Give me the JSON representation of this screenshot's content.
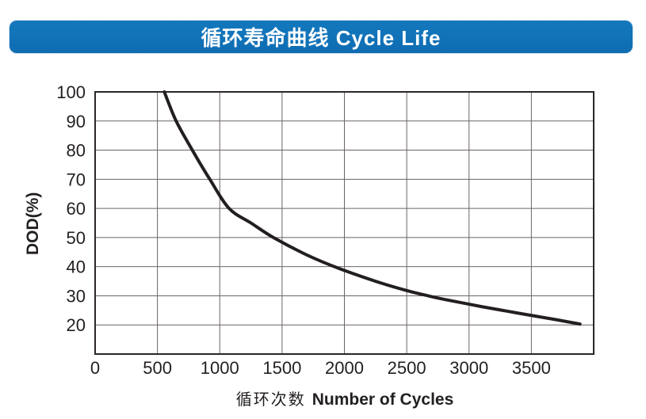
{
  "header": {
    "title": "循环寿命曲线 Cycle Life",
    "background_color": "#1172b8",
    "text_color": "#ffffff"
  },
  "chart_data": {
    "type": "line",
    "title": "循环寿命曲线 Cycle Life",
    "xlabel": "循环次数 Number of Cycles",
    "xlabel_zh": "循环次数",
    "xlabel_en": "Number of Cycles",
    "ylabel": "DOD(%)",
    "xlim": [
      0,
      4000
    ],
    "ylim": [
      10,
      100
    ],
    "x_ticks": [
      0,
      500,
      1000,
      1500,
      2000,
      2500,
      3000,
      3500
    ],
    "y_ticks": [
      20,
      30,
      40,
      50,
      60,
      70,
      80,
      90,
      100
    ],
    "x_grid_step": 500,
    "y_grid_step": 10,
    "grid": "on",
    "legend": "none",
    "colors": {
      "curve": "#231f20",
      "gridline": "#6b6466",
      "plot_border": "#2b2726",
      "text": "#231f20"
    },
    "series": [
      {
        "name": "Cycle Life",
        "color": "#231f20",
        "points": [
          [
            555,
            100
          ],
          [
            650,
            90
          ],
          [
            780,
            80
          ],
          [
            920,
            70
          ],
          [
            1075,
            60
          ],
          [
            1250,
            55
          ],
          [
            1430,
            50
          ],
          [
            1700,
            44
          ],
          [
            1950,
            39.5
          ],
          [
            2250,
            35
          ],
          [
            2500,
            31.8
          ],
          [
            2670,
            30
          ],
          [
            2800,
            28.8
          ],
          [
            3100,
            26.3
          ],
          [
            3400,
            24
          ],
          [
            3700,
            21.8
          ],
          [
            3890,
            20.3
          ]
        ]
      }
    ]
  }
}
